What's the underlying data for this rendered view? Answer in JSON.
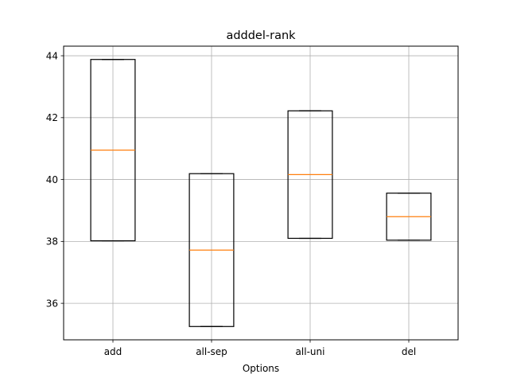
{
  "chart_data": {
    "type": "box",
    "title": "adddel-rank",
    "xlabel": "Options",
    "ylabel": "",
    "categories": [
      "add",
      "all-sep",
      "all-uni",
      "del"
    ],
    "boxes": [
      {
        "category": "add",
        "whislo": 38.02,
        "q1": 38.02,
        "med": 40.95,
        "q3": 43.88,
        "whishi": 43.88
      },
      {
        "category": "all-sep",
        "whislo": 35.25,
        "q1": 35.25,
        "med": 37.72,
        "q3": 40.19,
        "whishi": 40.19
      },
      {
        "category": "all-uni",
        "whislo": 38.1,
        "q1": 38.1,
        "med": 40.16,
        "q3": 42.22,
        "whishi": 42.22
      },
      {
        "category": "del",
        "whislo": 38.04,
        "q1": 38.04,
        "med": 38.8,
        "q3": 39.56,
        "whishi": 39.56
      }
    ],
    "ylim": [
      34.82,
      44.31
    ],
    "yticks": [
      36,
      38,
      40,
      42,
      44
    ],
    "grid": true,
    "colors": {
      "box": "#000000",
      "median": "#ff7f0e",
      "grid": "#b0b0b0"
    }
  }
}
